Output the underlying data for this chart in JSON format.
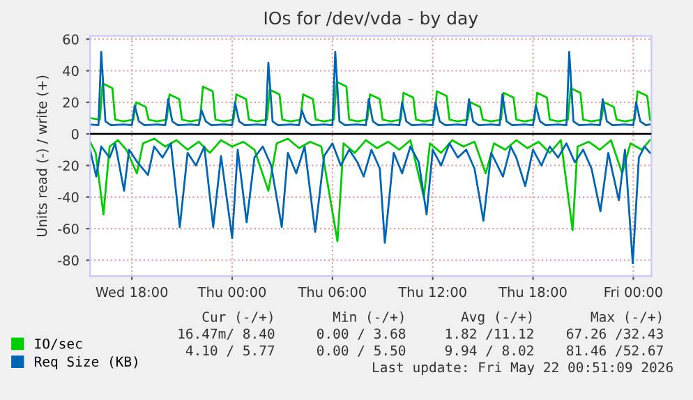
{
  "chart_data": {
    "type": "line",
    "title": "IOs for /dev/vda - by day",
    "ylabel": "Units read (-) / write (+)",
    "xlim": [
      "2026-05-20T15:30",
      "2026-05-22T01:05"
    ],
    "ylim": [
      -90,
      62
    ],
    "yticks": [
      -80,
      -60,
      -40,
      -20,
      0,
      20,
      40,
      60
    ],
    "xticks": [
      {
        "value": "2026-05-20T18:00",
        "label": "Wed 18:00"
      },
      {
        "value": "2026-05-21T00:00",
        "label": "Thu 00:00"
      },
      {
        "value": "2026-05-21T06:00",
        "label": "Thu 06:00"
      },
      {
        "value": "2026-05-21T12:00",
        "label": "Thu 12:00"
      },
      {
        "value": "2026-05-21T18:00",
        "label": "Thu 18:00"
      },
      {
        "value": "2026-05-22T00:00",
        "label": "Fri 00:00"
      }
    ],
    "grid": true,
    "legend": "bottom",
    "ref_lines": [
      {
        "axis": "y",
        "value": 0,
        "color": "#000000"
      }
    ],
    "series": [
      {
        "name": "IO/sec",
        "color": "#00cc00",
        "x": [
          "2026-05-20T15:30",
          "2026-05-20T16:05",
          "2026-05-20T16:15",
          "2026-05-20T16:50",
          "2026-05-20T17:00",
          "2026-05-20T17:30",
          "2026-05-20T18:05",
          "2026-05-20T18:15",
          "2026-05-20T18:50",
          "2026-05-20T19:00",
          "2026-05-20T19:30",
          "2026-05-20T20:05",
          "2026-05-20T20:15",
          "2026-05-20T20:50",
          "2026-05-20T21:00",
          "2026-05-20T21:30",
          "2026-05-20T22:05",
          "2026-05-20T22:15",
          "2026-05-20T22:50",
          "2026-05-20T23:00",
          "2026-05-20T23:30",
          "2026-05-21T00:05",
          "2026-05-21T00:15",
          "2026-05-21T00:50",
          "2026-05-21T01:00",
          "2026-05-21T01:30",
          "2026-05-21T02:05",
          "2026-05-21T02:15",
          "2026-05-21T02:50",
          "2026-05-21T03:00",
          "2026-05-21T03:30",
          "2026-05-21T04:05",
          "2026-05-21T04:15",
          "2026-05-21T04:50",
          "2026-05-21T05:00",
          "2026-05-21T05:30",
          "2026-05-21T06:05",
          "2026-05-21T06:15",
          "2026-05-21T06:50",
          "2026-05-21T07:00",
          "2026-05-21T07:30",
          "2026-05-21T08:05",
          "2026-05-21T08:15",
          "2026-05-21T08:50",
          "2026-05-21T09:00",
          "2026-05-21T09:30",
          "2026-05-21T10:05",
          "2026-05-21T10:15",
          "2026-05-21T10:50",
          "2026-05-21T11:00",
          "2026-05-21T11:30",
          "2026-05-21T12:05",
          "2026-05-21T12:15",
          "2026-05-21T12:50",
          "2026-05-21T13:00",
          "2026-05-21T13:30",
          "2026-05-21T14:05",
          "2026-05-21T14:15",
          "2026-05-21T14:50",
          "2026-05-21T15:00",
          "2026-05-21T15:30",
          "2026-05-21T16:05",
          "2026-05-21T16:15",
          "2026-05-21T16:50",
          "2026-05-21T17:00",
          "2026-05-21T17:30",
          "2026-05-21T18:05",
          "2026-05-21T18:15",
          "2026-05-21T18:50",
          "2026-05-21T19:00",
          "2026-05-21T19:30",
          "2026-05-21T20:05",
          "2026-05-21T20:15",
          "2026-05-21T20:50",
          "2026-05-21T21:00",
          "2026-05-21T21:30",
          "2026-05-21T22:05",
          "2026-05-21T22:15",
          "2026-05-21T22:50",
          "2026-05-21T23:00",
          "2026-05-21T23:30",
          "2026-05-22T00:05",
          "2026-05-22T00:15",
          "2026-05-22T00:50",
          "2026-05-22T01:00"
        ],
        "values": [
          10,
          9,
          32,
          29,
          9,
          8,
          9,
          20,
          17,
          9,
          8,
          9,
          25,
          22,
          9,
          8,
          9,
          30,
          27,
          9,
          8,
          9,
          25,
          22,
          9,
          8,
          9,
          28,
          25,
          9,
          8,
          9,
          25,
          22,
          9,
          8,
          9,
          33,
          30,
          9,
          8,
          9,
          25,
          22,
          9,
          8,
          9,
          26,
          23,
          9,
          8,
          9,
          27,
          24,
          9,
          8,
          9,
          20,
          17,
          9,
          8,
          9,
          26,
          23,
          9,
          8,
          9,
          26,
          23,
          9,
          8,
          9,
          29,
          26,
          9,
          8,
          9,
          20,
          17,
          9,
          8,
          9,
          27,
          24,
          9
        ]
      },
      {
        "name": "Req Size (KB)",
        "color": "#0066b3",
        "x": [
          "2026-05-20T15:30",
          "2026-05-20T16:00",
          "2026-05-20T16:10",
          "2026-05-20T16:25",
          "2026-05-20T16:45",
          "2026-05-20T17:30",
          "2026-05-20T18:00",
          "2026-05-20T18:10",
          "2026-05-20T18:25",
          "2026-05-20T18:45",
          "2026-05-20T19:30",
          "2026-05-20T20:00",
          "2026-05-20T20:10",
          "2026-05-20T20:25",
          "2026-05-20T20:45",
          "2026-05-20T21:30",
          "2026-05-20T22:00",
          "2026-05-20T22:10",
          "2026-05-20T22:25",
          "2026-05-20T22:45",
          "2026-05-20T23:30",
          "2026-05-21T00:00",
          "2026-05-21T00:10",
          "2026-05-21T00:25",
          "2026-05-21T00:45",
          "2026-05-21T01:30",
          "2026-05-21T02:00",
          "2026-05-21T02:10",
          "2026-05-21T02:25",
          "2026-05-21T02:45",
          "2026-05-21T03:30",
          "2026-05-21T04:00",
          "2026-05-21T04:10",
          "2026-05-21T04:25",
          "2026-05-21T04:45",
          "2026-05-21T05:30",
          "2026-05-21T06:00",
          "2026-05-21T06:10",
          "2026-05-21T06:25",
          "2026-05-21T06:45",
          "2026-05-21T07:30",
          "2026-05-21T08:00",
          "2026-05-21T08:10",
          "2026-05-21T08:25",
          "2026-05-21T08:45",
          "2026-05-21T09:30",
          "2026-05-21T10:00",
          "2026-05-21T10:10",
          "2026-05-21T10:25",
          "2026-05-21T10:45",
          "2026-05-21T11:30",
          "2026-05-21T12:00",
          "2026-05-21T12:10",
          "2026-05-21T12:25",
          "2026-05-21T12:45",
          "2026-05-21T13:30",
          "2026-05-21T14:00",
          "2026-05-21T14:10",
          "2026-05-21T14:25",
          "2026-05-21T14:45",
          "2026-05-21T15:30",
          "2026-05-21T16:00",
          "2026-05-21T16:10",
          "2026-05-21T16:25",
          "2026-05-21T16:45",
          "2026-05-21T17:30",
          "2026-05-21T18:00",
          "2026-05-21T18:10",
          "2026-05-21T18:25",
          "2026-05-21T18:45",
          "2026-05-21T19:30",
          "2026-05-21T20:00",
          "2026-05-21T20:10",
          "2026-05-21T20:25",
          "2026-05-21T20:45",
          "2026-05-21T21:30",
          "2026-05-21T22:00",
          "2026-05-21T22:10",
          "2026-05-21T22:25",
          "2026-05-21T22:45",
          "2026-05-21T23:30",
          "2026-05-22T00:00",
          "2026-05-22T00:10",
          "2026-05-22T00:25",
          "2026-05-22T00:45",
          "2026-05-22T01:00"
        ],
        "values": [
          6,
          5.5,
          52,
          8,
          5.5,
          6,
          5.5,
          18,
          8,
          5.5,
          6,
          5.5,
          22,
          8,
          5.5,
          6,
          5.5,
          15,
          8,
          5.5,
          6,
          5.5,
          20,
          8,
          5.5,
          6,
          5.5,
          45,
          8,
          5.5,
          6,
          5.5,
          15,
          8,
          5.5,
          6,
          5.5,
          52,
          8,
          5.5,
          6,
          5.5,
          22,
          8,
          5.5,
          6,
          5.5,
          20,
          8,
          5.5,
          6,
          5.5,
          20,
          8,
          5.5,
          6,
          5.5,
          22,
          8,
          5.5,
          6,
          5.5,
          25,
          8,
          5.5,
          6,
          5.5,
          18,
          8,
          5.5,
          6,
          5.5,
          52,
          8,
          5.5,
          6,
          5.5,
          22,
          8,
          5.5,
          6,
          5.5,
          20,
          8,
          5.5,
          6
        ]
      },
      {
        "color": "#00cc00",
        "x": [
          "2026-05-20T15:30",
          "2026-05-20T15:50",
          "2026-05-20T16:18",
          "2026-05-20T16:40",
          "2026-05-20T17:10",
          "2026-05-20T17:40",
          "2026-05-20T18:18",
          "2026-05-20T18:40",
          "2026-05-20T19:20",
          "2026-05-20T20:00",
          "2026-05-20T20:40",
          "2026-05-20T21:20",
          "2026-05-20T22:00",
          "2026-05-20T22:40",
          "2026-05-20T23:20",
          "2026-05-21T00:00",
          "2026-05-21T00:40",
          "2026-05-21T01:20",
          "2026-05-21T02:10",
          "2026-05-21T02:40",
          "2026-05-21T03:20",
          "2026-05-21T04:00",
          "2026-05-21T04:40",
          "2026-05-21T05:20",
          "2026-05-21T06:18",
          "2026-05-21T06:40",
          "2026-05-21T07:20",
          "2026-05-21T08:00",
          "2026-05-21T08:40",
          "2026-05-21T09:20",
          "2026-05-21T10:00",
          "2026-05-21T10:40",
          "2026-05-21T11:28",
          "2026-05-21T11:50",
          "2026-05-21T12:30",
          "2026-05-21T13:10",
          "2026-05-21T13:50",
          "2026-05-21T14:30",
          "2026-05-21T15:10",
          "2026-05-21T15:40",
          "2026-05-21T16:20",
          "2026-05-21T17:00",
          "2026-05-21T17:40",
          "2026-05-21T18:20",
          "2026-05-21T19:00",
          "2026-05-21T19:40",
          "2026-05-21T20:22",
          "2026-05-21T20:40",
          "2026-05-21T21:20",
          "2026-05-21T22:00",
          "2026-05-21T22:40",
          "2026-05-21T23:20",
          "2026-05-21T23:50",
          "2026-05-22T00:30",
          "2026-05-22T01:00"
        ],
        "values": [
          -5,
          -12,
          -51,
          -8,
          -4,
          -10,
          -25,
          -6,
          -3,
          -8,
          -4,
          -10,
          -5,
          -12,
          -4,
          -8,
          -5,
          -10,
          -36,
          -6,
          -3,
          -9,
          -5,
          -8,
          -68,
          -6,
          -12,
          -4,
          -9,
          -5,
          -10,
          -4,
          -40,
          -6,
          -12,
          -4,
          -8,
          -5,
          -25,
          -6,
          -10,
          -4,
          -9,
          -5,
          -12,
          -4,
          -61,
          -8,
          -5,
          -10,
          -4,
          -25,
          -6,
          -10,
          -4
        ]
      },
      {
        "color": "#0066b3",
        "x": [
          "2026-05-20T15:30",
          "2026-05-20T15:52",
          "2026-05-20T16:10",
          "2026-05-20T16:40",
          "2026-05-20T17:00",
          "2026-05-20T17:32",
          "2026-05-20T17:50",
          "2026-05-20T18:20",
          "2026-05-20T18:58",
          "2026-05-20T19:20",
          "2026-05-20T19:50",
          "2026-05-20T20:20",
          "2026-05-20T20:52",
          "2026-05-20T21:20",
          "2026-05-20T21:50",
          "2026-05-20T22:20",
          "2026-05-20T22:52",
          "2026-05-20T23:20",
          "2026-05-21T00:00",
          "2026-05-21T00:20",
          "2026-05-21T00:52",
          "2026-05-21T01:20",
          "2026-05-21T01:50",
          "2026-05-21T02:20",
          "2026-05-21T02:58",
          "2026-05-21T03:20",
          "2026-05-21T03:50",
          "2026-05-21T04:20",
          "2026-05-21T04:58",
          "2026-05-21T05:30",
          "2026-05-21T06:00",
          "2026-05-21T06:30",
          "2026-05-21T07:00",
          "2026-05-21T07:30",
          "2026-05-21T07:52",
          "2026-05-21T08:20",
          "2026-05-21T08:50",
          "2026-05-21T09:08",
          "2026-05-21T09:40",
          "2026-05-21T10:10",
          "2026-05-21T10:40",
          "2026-05-21T11:10",
          "2026-05-21T11:38",
          "2026-05-21T12:00",
          "2026-05-21T12:30",
          "2026-05-21T13:00",
          "2026-05-21T13:30",
          "2026-05-21T14:00",
          "2026-05-21T14:30",
          "2026-05-21T15:02",
          "2026-05-21T15:30",
          "2026-05-21T16:12",
          "2026-05-21T16:40",
          "2026-05-21T17:00",
          "2026-05-21T17:32",
          "2026-05-21T18:00",
          "2026-05-21T18:30",
          "2026-05-21T19:00",
          "2026-05-21T19:30",
          "2026-05-21T20:00",
          "2026-05-21T20:30",
          "2026-05-21T21:00",
          "2026-05-21T21:30",
          "2026-05-21T22:02",
          "2026-05-21T22:30",
          "2026-05-21T23:08",
          "2026-05-21T23:30",
          "2026-05-21T23:58",
          "2026-05-22T00:20",
          "2026-05-22T00:40",
          "2026-05-22T01:00"
        ],
        "values": [
          -10,
          -27,
          -8,
          -15,
          -6,
          -36,
          -10,
          -18,
          -26,
          -8,
          -15,
          -6,
          -59,
          -12,
          -20,
          -8,
          -59,
          -14,
          -66,
          -10,
          -56,
          -15,
          -8,
          -20,
          -59,
          -12,
          -25,
          -8,
          -62,
          -14,
          -6,
          -20,
          -10,
          -18,
          -27,
          -10,
          -22,
          -69,
          -12,
          -25,
          -8,
          -18,
          -51,
          -10,
          -20,
          -6,
          -15,
          -10,
          -22,
          -55,
          -12,
          -27,
          -8,
          -15,
          -33,
          -10,
          -20,
          -8,
          -15,
          -6,
          -18,
          -10,
          -22,
          -49,
          -12,
          -42,
          -10,
          -82,
          -15,
          -8,
          -12
        ]
      }
    ],
    "annotations": [
      "Cur (-/+)",
      "Min (-/+)",
      "Avg (-/+)",
      "Max (-/+)",
      "16.47m/ 8.40",
      "0.00 / 3.68",
      "1.82 /11.12",
      "67.26 /32.43",
      "4.10 / 5.77",
      "0.00 / 5.50",
      "9.94 / 8.02",
      "81.46 /52.67",
      "Last update: Fri May 22 00:51:09 2026"
    ]
  }
}
